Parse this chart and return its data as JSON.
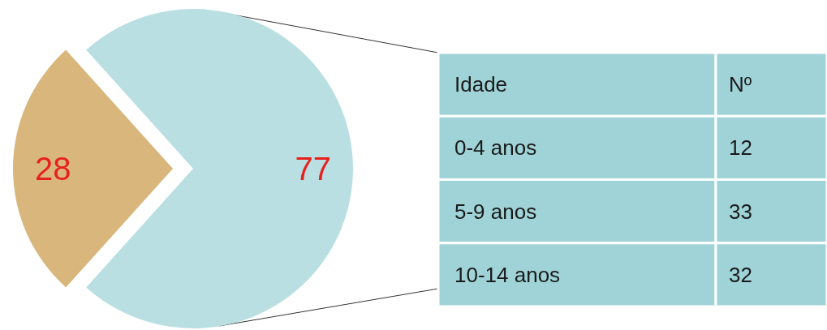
{
  "chart_data": [
    {
      "type": "pie",
      "categories": [
        null,
        null
      ],
      "values": [
        28,
        77
      ],
      "colors": [
        "#d9b67c",
        "#b9dfe3"
      ],
      "data_labels": true
    },
    {
      "type": "other",
      "xlabel": "Idade",
      "ylabel": "Nº",
      "categories": [
        "0-4 anos",
        "5-9 anos",
        "10-14 anos"
      ],
      "values": [
        12,
        33,
        32
      ],
      "data_labels": true,
      "color": "#9fd3d8"
    }
  ]
}
